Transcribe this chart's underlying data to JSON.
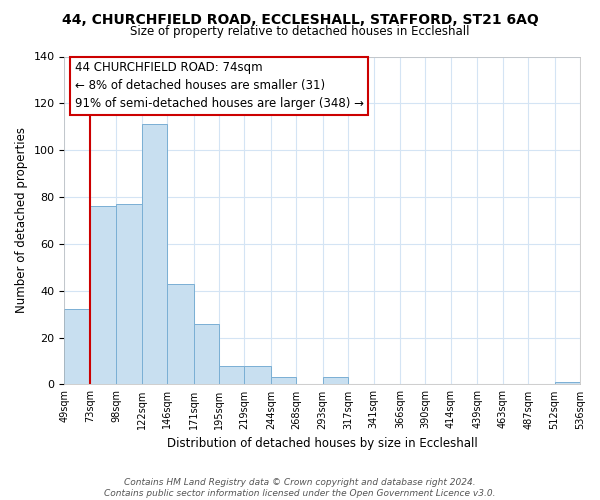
{
  "title": "44, CHURCHFIELD ROAD, ECCLESHALL, STAFFORD, ST21 6AQ",
  "subtitle": "Size of property relative to detached houses in Eccleshall",
  "xlabel": "Distribution of detached houses by size in Eccleshall",
  "ylabel": "Number of detached properties",
  "bar_color": "#c8dff0",
  "bar_edge_color": "#7aafd4",
  "background_color": "#ffffff",
  "grid_color": "#d4e4f4",
  "bins": [
    49,
    73,
    98,
    122,
    146,
    171,
    195,
    219,
    244,
    268,
    293,
    317,
    341,
    366,
    390,
    414,
    439,
    463,
    487,
    512,
    536
  ],
  "bin_labels": [
    "49sqm",
    "73sqm",
    "98sqm",
    "122sqm",
    "146sqm",
    "171sqm",
    "195sqm",
    "219sqm",
    "244sqm",
    "268sqm",
    "293sqm",
    "317sqm",
    "341sqm",
    "366sqm",
    "390sqm",
    "414sqm",
    "439sqm",
    "463sqm",
    "487sqm",
    "512sqm",
    "536sqm"
  ],
  "bar_heights": [
    32,
    76,
    77,
    111,
    43,
    26,
    8,
    8,
    3,
    0,
    3,
    0,
    0,
    0,
    0,
    0,
    0,
    0,
    0,
    1
  ],
  "ylim": [
    0,
    140
  ],
  "yticks": [
    0,
    20,
    40,
    60,
    80,
    100,
    120,
    140
  ],
  "property_line_x": 73,
  "property_line_color": "#cc0000",
  "annotation_text_line1": "44 CHURCHFIELD ROAD: 74sqm",
  "annotation_text_line2": "← 8% of detached houses are smaller (31)",
  "annotation_text_line3": "91% of semi-detached houses are larger (348) →",
  "annotation_box_color": "#ffffff",
  "annotation_border_color": "#cc0000",
  "footer_line1": "Contains HM Land Registry data © Crown copyright and database right 2024.",
  "footer_line2": "Contains public sector information licensed under the Open Government Licence v3.0."
}
